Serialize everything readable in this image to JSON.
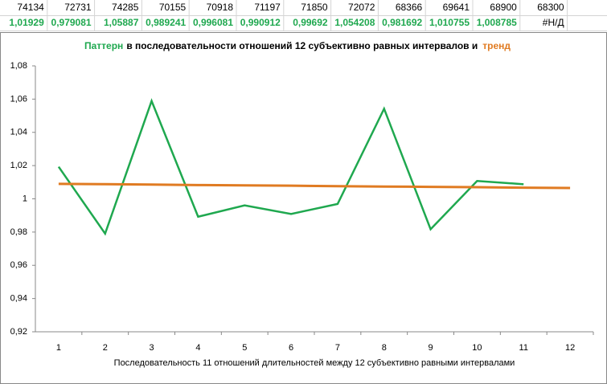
{
  "sheet": {
    "rows": [
      [
        "74134",
        "72731",
        "74285",
        "70155",
        "70918",
        "71197",
        "71850",
        "72072",
        "68366",
        "69641",
        "68900",
        "68300"
      ],
      [
        "1,01929",
        "0,979081",
        "1,05887",
        "0,989241",
        "0,996081",
        "0,990912",
        "0,99692",
        "1,054208",
        "0,981692",
        "1,010755",
        "1,008785",
        "#Н/Д"
      ]
    ]
  },
  "chart_data": {
    "type": "line",
    "title": "в  последовательности отношений  12 субъективно равных интервалов и",
    "x_label": "Последовательность  11  отношений  длительностей  между  12 субъективно  равными  интервалами",
    "categories": [
      "1",
      "2",
      "3",
      "4",
      "5",
      "6",
      "7",
      "8",
      "9",
      "10",
      "11",
      "12"
    ],
    "series": [
      {
        "name": "Паттерн",
        "color": "#1fa84f",
        "values": [
          1.01929,
          0.979081,
          1.05887,
          0.989241,
          0.996081,
          0.990912,
          0.99692,
          1.054208,
          0.981692,
          1.010755,
          1.008785,
          null
        ]
      },
      {
        "name": "тренд",
        "color": "#e07b22",
        "values": [
          1.009,
          1.0088,
          1.0086,
          1.0083,
          1.0081,
          1.0079,
          1.0076,
          1.0074,
          1.0072,
          1.007,
          1.0067,
          1.0065
        ]
      }
    ],
    "ylim": [
      0.92,
      1.08
    ],
    "yticks": [
      {
        "value": 0.92,
        "label": "0,92"
      },
      {
        "value": 0.94,
        "label": "0,94"
      },
      {
        "value": 0.96,
        "label": "0,96"
      },
      {
        "value": 0.98,
        "label": "0,98"
      },
      1,
      {
        "value": 1.02,
        "label": "1,02"
      },
      {
        "value": 1.04,
        "label": "1,04"
      },
      {
        "value": 1.06,
        "label": "1,06"
      },
      {
        "value": 1.08,
        "label": "1,08"
      }
    ],
    "grid": false
  }
}
